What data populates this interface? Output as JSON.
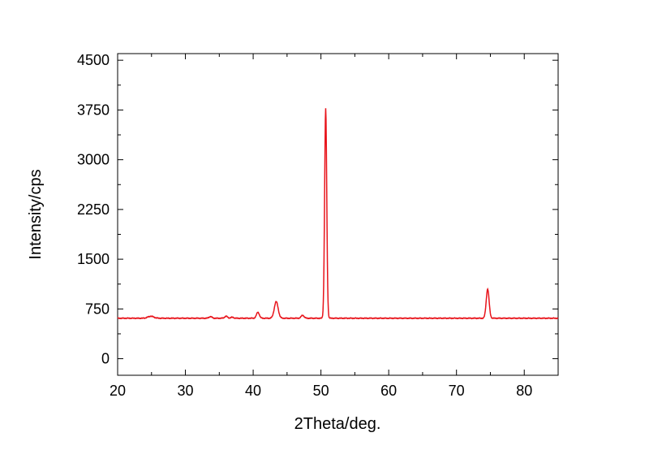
{
  "chart_data": {
    "type": "line",
    "title": "",
    "xlabel": "2Theta/deg.",
    "ylabel": "Intensity/cps",
    "xlim": [
      20,
      85
    ],
    "ylim": [
      -250,
      4600
    ],
    "xticks": [
      20,
      30,
      40,
      50,
      60,
      70,
      80
    ],
    "yticks": [
      0,
      750,
      1500,
      2250,
      3000,
      3750,
      4500
    ],
    "grid": false,
    "legend": "none",
    "series_color": "#e8141b",
    "baseline": 610,
    "peaks": [
      {
        "x": 24.9,
        "height": 640,
        "width": 0.6
      },
      {
        "x": 33.7,
        "height": 635,
        "width": 0.3
      },
      {
        "x": 36.0,
        "height": 640,
        "width": 0.3
      },
      {
        "x": 36.9,
        "height": 625,
        "width": 0.3
      },
      {
        "x": 40.7,
        "height": 700,
        "width": 0.3
      },
      {
        "x": 43.4,
        "height": 860,
        "width": 0.4
      },
      {
        "x": 47.3,
        "height": 655,
        "width": 0.3
      },
      {
        "x": 50.7,
        "height": 3770,
        "width": 0.22
      },
      {
        "x": 74.6,
        "height": 1050,
        "width": 0.3
      }
    ]
  }
}
